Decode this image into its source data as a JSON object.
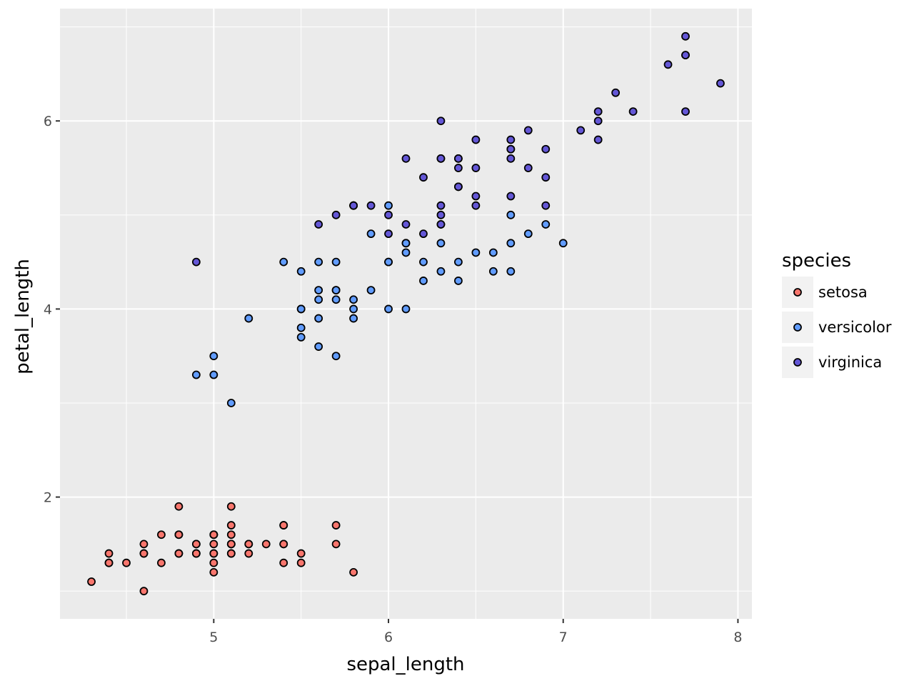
{
  "chart_data": {
    "type": "scatter",
    "title": "",
    "xlabel": "sepal_length",
    "ylabel": "petal_length",
    "xlim": [
      4.12,
      8.08
    ],
    "ylim": [
      0.705,
      7.195
    ],
    "x_major_ticks": [
      5,
      6,
      7,
      8
    ],
    "x_tick_labels": [
      "5",
      "6",
      "7",
      "8"
    ],
    "x_minor_ticks": [
      4.5,
      5.5,
      6.5,
      7.5
    ],
    "y_major_ticks": [
      2,
      4,
      6
    ],
    "y_tick_labels": [
      "2",
      "4",
      "6"
    ],
    "y_minor_ticks": [
      1,
      3,
      5,
      7
    ],
    "grid": true,
    "panel_background": "#ebebeb",
    "grid_color": "#ffffff",
    "point_outline": "#000000",
    "legend": {
      "title": "species",
      "position": "right"
    },
    "series": [
      {
        "name": "setosa",
        "color": "#f8766d",
        "points": [
          [
            5.1,
            1.4
          ],
          [
            4.9,
            1.4
          ],
          [
            4.7,
            1.3
          ],
          [
            4.6,
            1.5
          ],
          [
            5.0,
            1.4
          ],
          [
            5.4,
            1.7
          ],
          [
            4.6,
            1.4
          ],
          [
            5.0,
            1.5
          ],
          [
            4.4,
            1.4
          ],
          [
            4.9,
            1.5
          ],
          [
            5.4,
            1.5
          ],
          [
            4.8,
            1.6
          ],
          [
            4.8,
            1.4
          ],
          [
            4.3,
            1.1
          ],
          [
            5.8,
            1.2
          ],
          [
            5.7,
            1.5
          ],
          [
            5.4,
            1.3
          ],
          [
            5.1,
            1.4
          ],
          [
            5.7,
            1.7
          ],
          [
            5.1,
            1.5
          ],
          [
            5.4,
            1.7
          ],
          [
            5.1,
            1.5
          ],
          [
            4.6,
            1.0
          ],
          [
            5.1,
            1.7
          ],
          [
            4.8,
            1.9
          ],
          [
            5.0,
            1.6
          ],
          [
            5.0,
            1.6
          ],
          [
            5.2,
            1.5
          ],
          [
            5.2,
            1.4
          ],
          [
            4.7,
            1.6
          ],
          [
            4.8,
            1.6
          ],
          [
            5.4,
            1.5
          ],
          [
            5.2,
            1.5
          ],
          [
            5.5,
            1.4
          ],
          [
            4.9,
            1.5
          ],
          [
            5.0,
            1.2
          ],
          [
            5.5,
            1.3
          ],
          [
            4.9,
            1.4
          ],
          [
            4.4,
            1.3
          ],
          [
            5.1,
            1.5
          ],
          [
            5.0,
            1.3
          ],
          [
            4.5,
            1.3
          ],
          [
            4.4,
            1.3
          ],
          [
            5.0,
            1.6
          ],
          [
            5.1,
            1.9
          ],
          [
            4.8,
            1.4
          ],
          [
            5.1,
            1.6
          ],
          [
            4.6,
            1.4
          ],
          [
            5.3,
            1.5
          ],
          [
            5.0,
            1.4
          ]
        ]
      },
      {
        "name": "versicolor",
        "color": "#619cff",
        "points": [
          [
            7.0,
            4.7
          ],
          [
            6.4,
            4.5
          ],
          [
            6.9,
            4.9
          ],
          [
            5.5,
            4.0
          ],
          [
            6.5,
            4.6
          ],
          [
            5.7,
            4.5
          ],
          [
            6.3,
            4.7
          ],
          [
            4.9,
            3.3
          ],
          [
            6.6,
            4.6
          ],
          [
            5.2,
            3.9
          ],
          [
            5.0,
            3.5
          ],
          [
            5.9,
            4.2
          ],
          [
            6.0,
            4.0
          ],
          [
            6.1,
            4.7
          ],
          [
            5.6,
            3.6
          ],
          [
            6.7,
            4.4
          ],
          [
            5.6,
            4.5
          ],
          [
            5.8,
            4.1
          ],
          [
            6.2,
            4.5
          ],
          [
            5.6,
            3.9
          ],
          [
            5.9,
            4.8
          ],
          [
            6.1,
            4.0
          ],
          [
            6.3,
            4.9
          ],
          [
            6.1,
            4.7
          ],
          [
            6.4,
            4.3
          ],
          [
            6.6,
            4.4
          ],
          [
            6.8,
            4.8
          ],
          [
            6.7,
            5.0
          ],
          [
            6.0,
            4.5
          ],
          [
            5.7,
            3.5
          ],
          [
            5.5,
            3.8
          ],
          [
            5.5,
            3.7
          ],
          [
            5.8,
            3.9
          ],
          [
            6.0,
            5.1
          ],
          [
            5.4,
            4.5
          ],
          [
            6.0,
            4.5
          ],
          [
            6.7,
            4.7
          ],
          [
            6.3,
            4.4
          ],
          [
            5.6,
            4.1
          ],
          [
            5.5,
            4.0
          ],
          [
            5.5,
            4.4
          ],
          [
            6.1,
            4.6
          ],
          [
            5.8,
            4.0
          ],
          [
            5.0,
            3.3
          ],
          [
            5.6,
            4.2
          ],
          [
            5.7,
            4.2
          ],
          [
            5.7,
            4.2
          ],
          [
            6.2,
            4.3
          ],
          [
            5.1,
            3.0
          ],
          [
            5.7,
            4.1
          ]
        ]
      },
      {
        "name": "virginica",
        "color": "#6457d6",
        "points": [
          [
            6.3,
            6.0
          ],
          [
            5.8,
            5.1
          ],
          [
            7.1,
            5.9
          ],
          [
            6.3,
            5.6
          ],
          [
            6.5,
            5.8
          ],
          [
            7.6,
            6.6
          ],
          [
            4.9,
            4.5
          ],
          [
            7.3,
            6.3
          ],
          [
            6.7,
            5.8
          ],
          [
            7.2,
            6.1
          ],
          [
            6.5,
            5.1
          ],
          [
            6.4,
            5.3
          ],
          [
            6.8,
            5.5
          ],
          [
            5.7,
            5.0
          ],
          [
            5.8,
            5.1
          ],
          [
            6.4,
            5.3
          ],
          [
            6.5,
            5.5
          ],
          [
            7.7,
            6.7
          ],
          [
            7.7,
            6.9
          ],
          [
            6.0,
            5.0
          ],
          [
            6.9,
            5.7
          ],
          [
            5.6,
            4.9
          ],
          [
            7.7,
            6.7
          ],
          [
            6.3,
            4.9
          ],
          [
            6.7,
            5.7
          ],
          [
            7.2,
            6.0
          ],
          [
            6.2,
            4.8
          ],
          [
            6.1,
            4.9
          ],
          [
            6.4,
            5.6
          ],
          [
            7.2,
            5.8
          ],
          [
            7.4,
            6.1
          ],
          [
            7.9,
            6.4
          ],
          [
            6.4,
            5.6
          ],
          [
            6.3,
            5.1
          ],
          [
            6.1,
            5.6
          ],
          [
            7.7,
            6.1
          ],
          [
            6.3,
            5.6
          ],
          [
            6.4,
            5.5
          ],
          [
            6.0,
            4.8
          ],
          [
            6.9,
            5.4
          ],
          [
            6.7,
            5.6
          ],
          [
            6.9,
            5.1
          ],
          [
            5.8,
            5.1
          ],
          [
            6.8,
            5.9
          ],
          [
            6.7,
            5.7
          ],
          [
            6.7,
            5.2
          ],
          [
            6.3,
            5.0
          ],
          [
            6.5,
            5.2
          ],
          [
            6.2,
            5.4
          ],
          [
            5.9,
            5.1
          ]
        ]
      }
    ]
  }
}
